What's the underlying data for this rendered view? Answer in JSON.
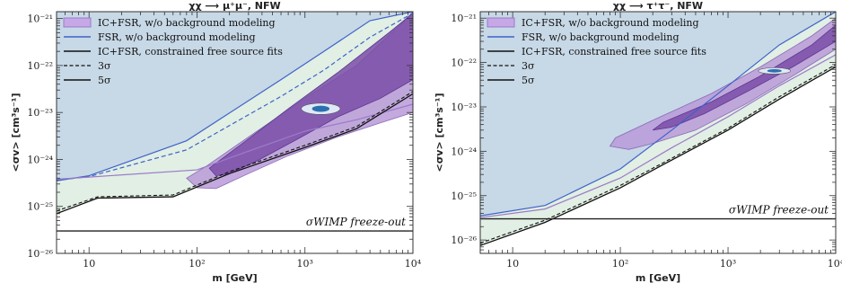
{
  "colors": {
    "excluded_fill": "#c7d8e6",
    "allowed_fill": "#e1efe4",
    "fsr_line": "#3e62c9",
    "icfsr_line": "#9b7ac9",
    "contour_3sigma": "#9a86c9",
    "contour_5sigma": "#7a4ea8",
    "wimp_line": "#222222"
  },
  "chart_data": [
    {
      "type": "line",
      "title": "χχ ⟶ μ⁺μ⁻, NFW",
      "xlabel": "m [GeV]",
      "ylabel": "<σv> [cm³s⁻¹]",
      "xscale": "log",
      "yscale": "log",
      "xlim": [
        5,
        10000
      ],
      "ylim": [
        1e-26,
        1.4e-21
      ],
      "x_tick_labels": [
        "10",
        "10²",
        "10³",
        "10⁴"
      ],
      "y_tick_labels": [
        "10⁻²¹",
        "10⁻²²",
        "10⁻²³",
        "10⁻²⁴",
        "10⁻²⁵",
        "10⁻²⁶"
      ],
      "legend": [
        {
          "label": "IC+FSR, w/o background modeling",
          "kind": "swatch-purple"
        },
        {
          "label": "FSR, w/o background modeling",
          "kind": "swatch-blue"
        },
        {
          "label": "IC+FSR, constrained free source fits",
          "kind": "line-black"
        },
        {
          "label": "3σ",
          "kind": "dashed"
        },
        {
          "label": "5σ",
          "kind": "solid"
        }
      ],
      "annotation": "σWIMP freeze-out",
      "wimp_level": 3e-26,
      "series": [
        {
          "name": "FSR, w/o background modeling",
          "x": [
            5,
            10,
            80,
            600,
            1500,
            4000,
            10000
          ],
          "y": [
            3.5e-25,
            4.5e-25,
            2.5e-24,
            5e-23,
            2e-22,
            9e-22,
            1.4e-21
          ]
        },
        {
          "name": "FSR, w/o background modeling (dashed)",
          "x": [
            5,
            10,
            80,
            600,
            1500,
            4000,
            10000
          ],
          "y": [
            3.6e-25,
            4.3e-25,
            1.6e-24,
            2.2e-23,
            8e-23,
            4e-22,
            1.3e-21
          ]
        },
        {
          "name": "IC+FSR, w/o background modeling",
          "x": [
            5,
            10,
            100,
            300,
            1000,
            3000,
            10000
          ],
          "y": [
            3.8e-25,
            4.2e-25,
            6e-25,
            1.5e-24,
            4e-24,
            7e-24,
            1.5e-23
          ]
        },
        {
          "name": "IC+FSR, constrained free source fits (5σ)",
          "x": [
            5,
            12,
            60,
            200,
            1000,
            3000,
            10000
          ],
          "y": [
            7e-26,
            1.5e-25,
            1.6e-25,
            5e-25,
            1.8e-24,
            4.5e-24,
            2.5e-23
          ]
        },
        {
          "name": "IC+FSR, constrained free source fits (3σ)",
          "x": [
            5,
            12,
            60,
            200,
            1000,
            3000,
            10000
          ],
          "y": [
            8e-26,
            1.6e-25,
            1.75e-25,
            5.5e-25,
            2e-24,
            5e-24,
            2.8e-23
          ]
        }
      ],
      "contours": {
        "outer_3sigma": [
          [
            100,
            2.5e-25
          ],
          [
            80,
            4e-25
          ],
          [
            120,
            7e-25
          ],
          [
            300,
            3e-24
          ],
          [
            1000,
            2e-23
          ],
          [
            3000,
            1e-22
          ],
          [
            8000,
            8e-22
          ],
          [
            10000,
            1.4e-21
          ],
          [
            10000,
            1e-23
          ],
          [
            5000,
            6e-24
          ],
          [
            2000,
            3e-24
          ],
          [
            700,
            1.2e-24
          ],
          [
            300,
            5e-25
          ],
          [
            150,
            2.4e-25
          ]
        ],
        "inner_5sigma": [
          [
            150,
            4.5e-25
          ],
          [
            130,
            6.5e-25
          ],
          [
            250,
            2e-24
          ],
          [
            700,
            1.2e-23
          ],
          [
            2000,
            7e-23
          ],
          [
            6000,
            5e-22
          ],
          [
            10000,
            1.3e-21
          ],
          [
            10000,
            5e-23
          ],
          [
            5000,
            2e-23
          ],
          [
            2000,
            8e-24
          ],
          [
            800,
            2.5e-24
          ],
          [
            350,
            9e-25
          ],
          [
            200,
            5e-25
          ]
        ],
        "best_fit": {
          "x": 1400,
          "y": 1.2e-23,
          "rx_dec": 0.18,
          "ry_dec": 0.12
        }
      }
    },
    {
      "type": "line",
      "title": "χχ ⟶ τ⁺τ⁻, NFW",
      "xlabel": "m [GeV]",
      "ylabel": "<σv> [cm³s⁻¹]",
      "xscale": "log",
      "yscale": "log",
      "xlim": [
        5,
        10000
      ],
      "ylim": [
        5e-27,
        1.4e-21
      ],
      "x_tick_labels": [
        "10",
        "10²",
        "10³",
        "10⁴"
      ],
      "y_tick_labels": [
        "10⁻²¹",
        "10⁻²²",
        "10⁻²³",
        "10⁻²⁴",
        "10⁻²⁵",
        "10⁻²⁶"
      ],
      "legend": [
        {
          "label": "IC+FSR, w/o background modeling",
          "kind": "swatch-purple"
        },
        {
          "label": "FSR, w/o background modeling",
          "kind": "swatch-blue"
        },
        {
          "label": "IC+FSR, constrained free source fits",
          "kind": "line-black"
        },
        {
          "label": "3σ",
          "kind": "dashed"
        },
        {
          "label": "5σ",
          "kind": "solid"
        }
      ],
      "annotation": "σWIMP freeze-out",
      "wimp_level": 3e-26,
      "series": [
        {
          "name": "FSR, w/o background modeling",
          "x": [
            5,
            20,
            100,
            300,
            1000,
            3000,
            10000
          ],
          "y": [
            3.5e-26,
            6e-26,
            4e-25,
            3e-24,
            3e-23,
            2.5e-22,
            1.4e-21
          ]
        },
        {
          "name": "IC+FSR, w/o background modeling",
          "x": [
            5,
            20,
            100,
            300,
            1000,
            3000,
            10000
          ],
          "y": [
            3.2e-26,
            5e-26,
            2.5e-25,
            1.2e-24,
            6e-24,
            3e-23,
            1.5e-22
          ]
        },
        {
          "name": "IC+FSR, constrained free source fits (5σ)",
          "x": [
            5,
            20,
            100,
            250,
            1000,
            3000,
            10000
          ],
          "y": [
            7.5e-27,
            2.5e-26,
            1.5e-25,
            5e-25,
            3e-24,
            1.5e-23,
            8e-23
          ]
        },
        {
          "name": "IC+FSR, constrained free source fits (3σ)",
          "x": [
            5,
            20,
            100,
            250,
            1000,
            3000,
            10000
          ],
          "y": [
            8.5e-27,
            2.8e-26,
            1.7e-25,
            5.5e-25,
            3.3e-24,
            1.7e-23,
            9e-23
          ]
        }
      ],
      "contours": {
        "outer_3sigma": [
          [
            80,
            1.3e-24
          ],
          [
            90,
            2e-24
          ],
          [
            200,
            5e-24
          ],
          [
            700,
            2e-23
          ],
          [
            2000,
            8e-23
          ],
          [
            6000,
            4e-22
          ],
          [
            10000,
            1e-21
          ],
          [
            10000,
            2e-22
          ],
          [
            4000,
            5e-23
          ],
          [
            1500,
            1.2e-23
          ],
          [
            500,
            3e-24
          ],
          [
            200,
            1.5e-24
          ],
          [
            120,
            1.1e-24
          ]
        ],
        "inner_5sigma": [
          [
            200,
            3e-24
          ],
          [
            250,
            4.5e-24
          ],
          [
            700,
            1.3e-23
          ],
          [
            2000,
            5e-23
          ],
          [
            6000,
            2.5e-22
          ],
          [
            10000,
            7e-22
          ],
          [
            10000,
            3e-22
          ],
          [
            4000,
            8e-23
          ],
          [
            1500,
            2.2e-23
          ],
          [
            600,
            7e-24
          ],
          [
            300,
            3.5e-24
          ]
        ],
        "best_fit": {
          "x": 2700,
          "y": 6.5e-23,
          "rx_dec": 0.15,
          "ry_dec": 0.07
        }
      }
    }
  ]
}
